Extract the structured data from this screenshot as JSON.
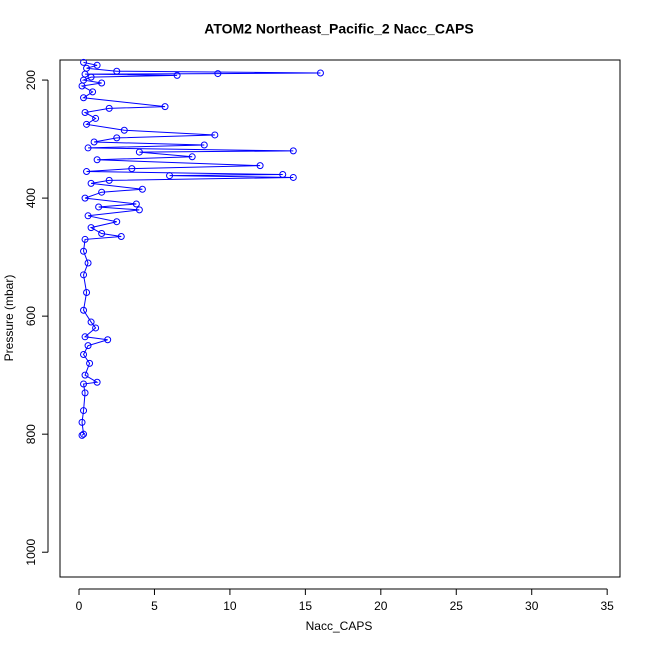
{
  "chart_data": {
    "type": "line",
    "title": "ATOM2 Northeast_Pacific_2 Nacc_CAPS",
    "x_label": "Nacc_CAPS",
    "y_label": "Pressure (mbar)",
    "color": "#0000ff",
    "y_reversed": true,
    "x": [
      0.3,
      1.2,
      0.5,
      2.5,
      16.0,
      9.2,
      0.4,
      6.5,
      0.8,
      0.3,
      1.5,
      0.2,
      0.9,
      0.3,
      5.7,
      2.0,
      0.4,
      1.1,
      0.5,
      3.0,
      9.0,
      2.5,
      1.0,
      8.3,
      0.6,
      14.2,
      4.0,
      7.5,
      1.2,
      12.0,
      3.5,
      0.5,
      13.5,
      6.0,
      14.2,
      2.0,
      0.8,
      4.2,
      1.5,
      0.4,
      3.8,
      1.3,
      4.0,
      0.6,
      2.5,
      0.8,
      1.5,
      2.8,
      0.4,
      0.3,
      0.6,
      0.3,
      0.5,
      0.3,
      0.8,
      1.1,
      0.4,
      1.9,
      0.6,
      0.3,
      0.7,
      0.4,
      1.2,
      0.3,
      0.4,
      0.3,
      0.2,
      0.3,
      0.2
    ],
    "values": [
      170,
      175,
      180,
      185,
      188,
      189,
      190,
      192,
      195,
      200,
      205,
      210,
      220,
      230,
      245,
      248,
      255,
      265,
      275,
      285,
      293,
      298,
      305,
      310,
      315,
      320,
      322,
      330,
      335,
      345,
      350,
      355,
      360,
      362,
      365,
      370,
      375,
      385,
      390,
      400,
      410,
      415,
      420,
      430,
      440,
      450,
      460,
      465,
      470,
      490,
      510,
      530,
      560,
      590,
      610,
      620,
      635,
      640,
      650,
      665,
      680,
      700,
      712,
      715,
      730,
      760,
      780,
      800,
      802
    ],
    "xlim": [
      -1.26,
      35.85
    ],
    "xticks": [
      0,
      5,
      10,
      15,
      20,
      25,
      30,
      35
    ],
    "ylim": [
      1042,
      166
    ],
    "yticks": [
      200,
      400,
      600,
      800,
      1000
    ]
  }
}
